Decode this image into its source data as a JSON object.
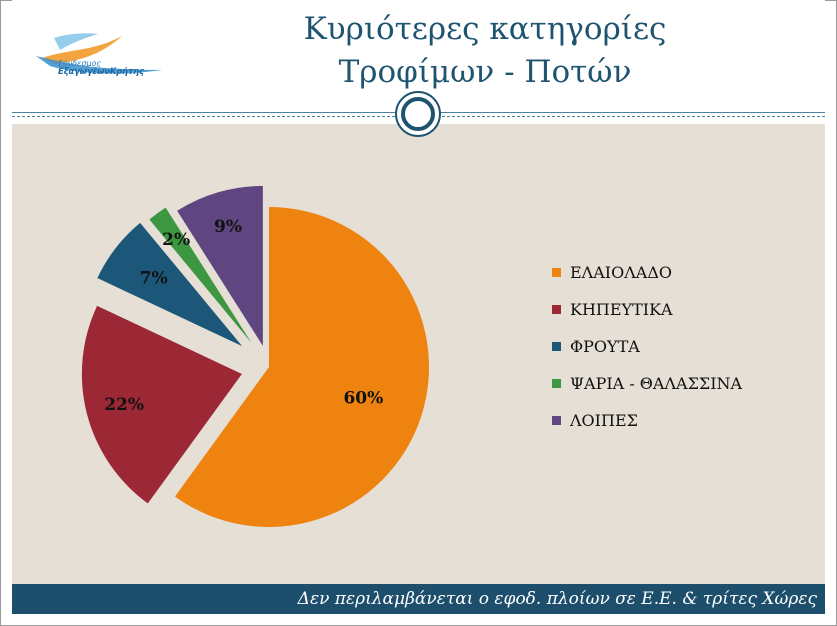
{
  "header": {
    "title_line1": "Κυριότερες κατηγορίες",
    "title_line2": "Τροφίμων - Ποτών",
    "logo_line1": "Σύνδεσμος",
    "logo_line2": "ΕξαγωγέωνΚρήτης"
  },
  "footer": {
    "note": "Δεν περιλαμβάνεται ο εφοδ. πλοίων σε Ε.Ε. & τρίτες Χώρες"
  },
  "chart_data": {
    "type": "pie",
    "title": "",
    "legend_position": "right",
    "slices": [
      {
        "label": "ΕΛΑΙΟΛΑΔΟ",
        "value": 60,
        "display": "60%",
        "color": "#ee8310"
      },
      {
        "label": "ΚΗΠΕΥΤΙΚΑ",
        "value": 22,
        "display": "22%",
        "color": "#9c2735"
      },
      {
        "label": "ΦΡΟΥΤΑ",
        "value": 7,
        "display": "7%",
        "color": "#1c5779"
      },
      {
        "label": "ΨΑΡΙΑ - ΘΑΛΑΣΣΙΝΑ",
        "value": 2,
        "display": "2%",
        "color": "#3d9640"
      },
      {
        "label": "ΛΟΙΠΕΣ",
        "value": 9,
        "display": "9%",
        "color": "#5f4680"
      }
    ]
  }
}
